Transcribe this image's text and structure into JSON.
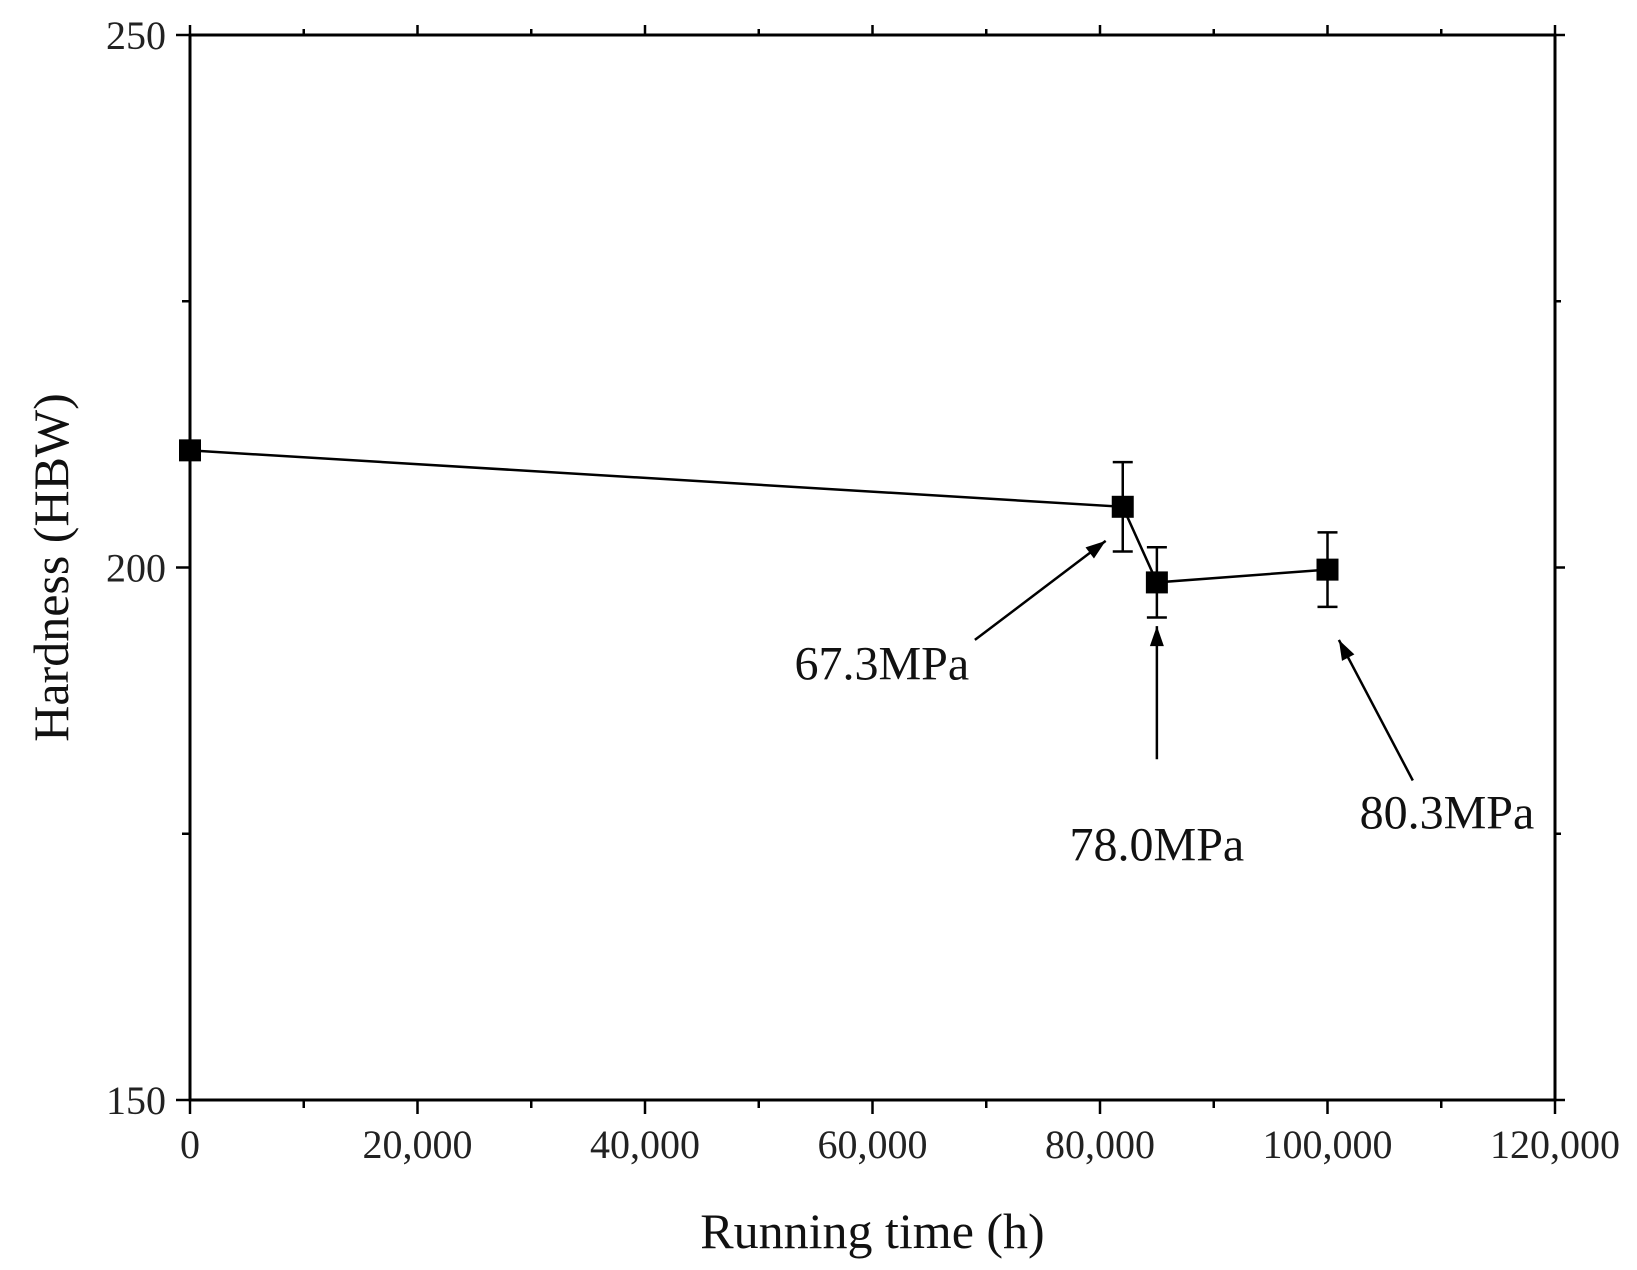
{
  "chart_data": {
    "type": "line",
    "title": "",
    "xlabel": "Running time (h)",
    "ylabel": "Hardness (HBW)",
    "xlim": [
      0,
      120000
    ],
    "ylim": [
      150,
      250
    ],
    "x_major_ticks": [
      0,
      20000,
      40000,
      60000,
      80000,
      100000,
      120000
    ],
    "x_tick_labels": [
      "0",
      "20,000",
      "40,000",
      "60,000",
      "80,000",
      "100,000",
      "120,000"
    ],
    "x_minor_ticks": [
      10000,
      30000,
      50000,
      70000,
      90000,
      110000
    ],
    "y_major_ticks": [
      150,
      200,
      250
    ],
    "y_tick_labels": [
      "150",
      "200",
      "250"
    ],
    "y_minor_ticks": [
      175,
      225
    ],
    "grid": false,
    "legend": "none",
    "series": [
      {
        "name": "Hardness",
        "marker": "square",
        "color": "#000000",
        "x": [
          0,
          82000,
          85000,
          100000
        ],
        "y": [
          211,
          205.7,
          198.6,
          199.8
        ],
        "error": [
          null,
          4.2,
          3.3,
          3.5
        ]
      }
    ],
    "annotations": [
      {
        "text": "67.3MPa",
        "point_index": 1,
        "arrow_tip": [
          80500,
          202.5
        ],
        "arrow_tail": [
          69000,
          193.2
        ],
        "text_anchor": [
          68500,
          189.5
        ],
        "align": "end"
      },
      {
        "text": "78.0MPa",
        "point_index": 2,
        "arrow_tip": [
          85000,
          194.5
        ],
        "arrow_tail": [
          85000,
          182
        ],
        "text_anchor": [
          85000,
          172.5
        ],
        "align": "middle"
      },
      {
        "text": "80.3MPa",
        "point_index": 3,
        "arrow_tip": [
          101000,
          193.2
        ],
        "arrow_tail": [
          107500,
          180
        ],
        "text_anchor": [
          110500,
          175.5
        ],
        "align": "middle"
      }
    ]
  }
}
